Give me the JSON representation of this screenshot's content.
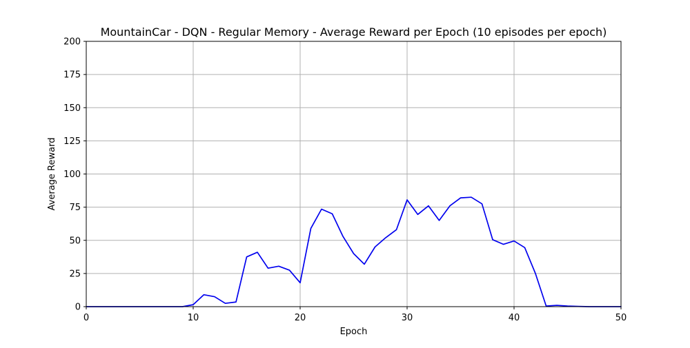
{
  "chart_data": {
    "type": "line",
    "title": "MountainCar - DQN - Regular Memory - Average Reward per Epoch (10 episodes per epoch)",
    "xlabel": "Epoch",
    "ylabel": "Average Reward",
    "xlim": [
      0,
      50
    ],
    "ylim": [
      0,
      200
    ],
    "xticks": [
      0,
      10,
      20,
      30,
      40,
      50
    ],
    "yticks": [
      0,
      25,
      50,
      75,
      100,
      125,
      150,
      175,
      200
    ],
    "grid": true,
    "series": [
      {
        "color": "#0000ee",
        "x": [
          0,
          1,
          2,
          3,
          4,
          5,
          6,
          7,
          8,
          9,
          10,
          11,
          12,
          13,
          14,
          15,
          16,
          17,
          18,
          19,
          20,
          21,
          22,
          23,
          24,
          25,
          26,
          27,
          28,
          29,
          30,
          31,
          32,
          33,
          34,
          35,
          36,
          37,
          38,
          39,
          40,
          41,
          42,
          43,
          44,
          45,
          46,
          47,
          48,
          49,
          50
        ],
        "y": [
          0,
          0,
          0,
          0,
          0,
          0,
          0,
          0,
          0,
          0,
          1.5,
          9,
          7.5,
          2.5,
          3.5,
          37.5,
          41,
          29,
          30.5,
          27.5,
          18,
          59,
          73.5,
          70,
          53,
          40,
          32,
          45,
          52,
          58,
          80.5,
          69.5,
          76,
          65,
          76,
          82,
          82.5,
          77.5,
          50.5,
          47,
          49.5,
          44.5,
          25,
          0.5,
          1,
          0.5,
          0.2,
          0,
          0,
          0,
          0
        ]
      }
    ]
  }
}
